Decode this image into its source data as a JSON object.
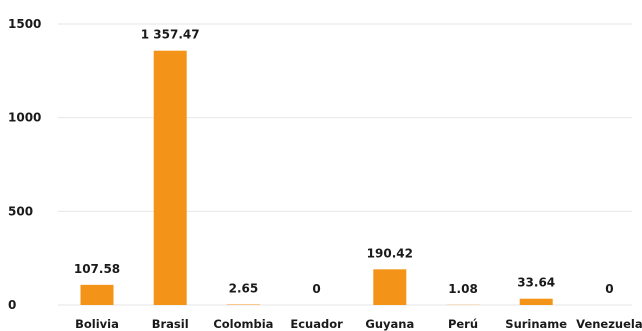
{
  "chart_data": {
    "type": "bar",
    "categories": [
      "Bolivia",
      "Brasil",
      "Colombia",
      "Ecuador",
      "Guyana",
      "Perú",
      "Suriname",
      "Venezuela"
    ],
    "values": [
      107.58,
      1357.47,
      2.65,
      0,
      190.42,
      1.08,
      33.64,
      0
    ],
    "data_labels": [
      "107.58",
      "1 357.47",
      "2.65",
      "0",
      "190.42",
      "1.08",
      "33.64",
      "0"
    ],
    "yticks": [
      0,
      500,
      1000,
      1500
    ],
    "ytick_labels": [
      "0",
      "500",
      "1000",
      "1500"
    ],
    "ylim": [
      0,
      1500
    ],
    "grid": true,
    "legend": false,
    "bar_color": "#F39317"
  }
}
